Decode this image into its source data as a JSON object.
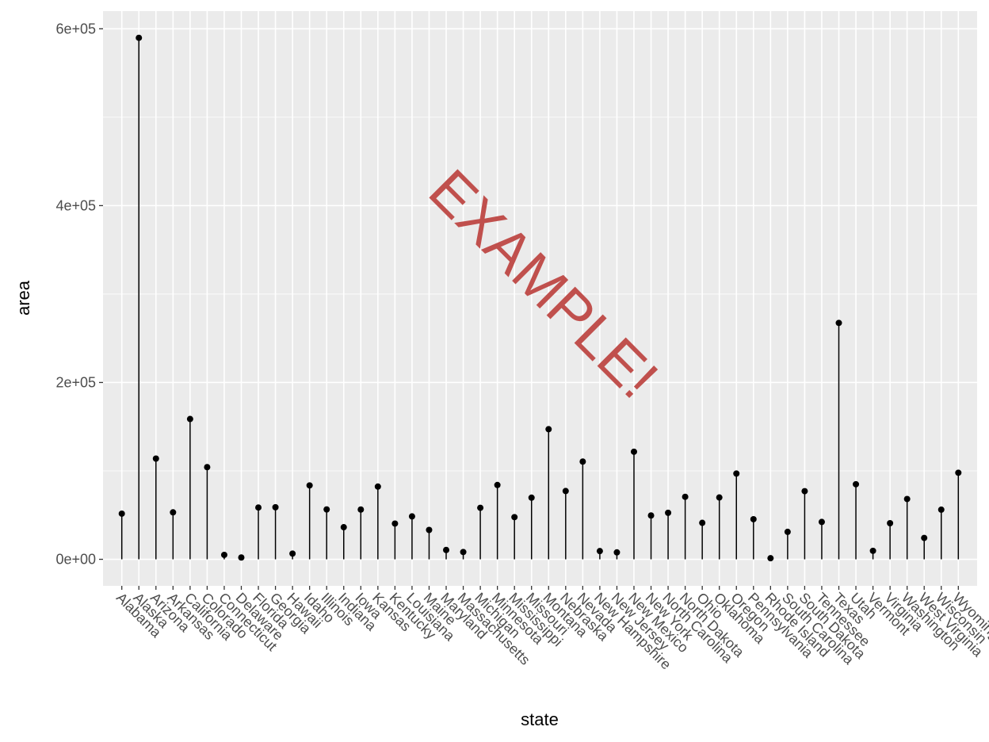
{
  "chart_data": {
    "type": "lollipop",
    "xlabel": "state",
    "ylabel": "area",
    "ylim": [
      -30000,
      620000
    ],
    "yticks": [
      0,
      200000,
      400000,
      600000
    ],
    "ytick_labels": [
      "0e+00",
      "2e+05",
      "4e+05",
      "6e+05"
    ],
    "grid": true,
    "panel_background": "#EBEBEB",
    "grid_color": "#FFFFFF",
    "stem_color": "#000000",
    "point_color": "#000000",
    "categories": [
      "Alabama",
      "Alaska",
      "Arizona",
      "Arkansas",
      "California",
      "Colorado",
      "Connecticut",
      "Delaware",
      "Florida",
      "Georgia",
      "Hawaii",
      "Idaho",
      "Illinois",
      "Indiana",
      "Iowa",
      "Kansas",
      "Kentucky",
      "Louisiana",
      "Maine",
      "Maryland",
      "Massachusetts",
      "Michigan",
      "Minnesota",
      "Mississippi",
      "Missouri",
      "Montana",
      "Nebraska",
      "Nevada",
      "New Hampshire",
      "New Jersey",
      "New Mexico",
      "New York",
      "North Carolina",
      "North Dakota",
      "Ohio",
      "Oklahoma",
      "Oregon",
      "Pennsylvania",
      "Rhode Island",
      "South Carolina",
      "South Dakota",
      "Tennessee",
      "Texas",
      "Utah",
      "Vermont",
      "Virginia",
      "Washington",
      "West Virginia",
      "Wisconsin",
      "Wyoming"
    ],
    "values": [
      51609,
      589757,
      113909,
      53104,
      158693,
      104247,
      5009,
      2057,
      58560,
      58876,
      6450,
      83557,
      56400,
      36291,
      56290,
      82264,
      40395,
      48523,
      33215,
      10577,
      8257,
      58216,
      84068,
      47716,
      69686,
      147138,
      77227,
      110540,
      9304,
      7836,
      121666,
      49576,
      52586,
      70665,
      41222,
      69919,
      96981,
      45333,
      1214,
      31055,
      77047,
      42244,
      267339,
      84916,
      9609,
      40815,
      68192,
      24181,
      56154,
      97914
    ],
    "watermark": {
      "text": "EXAMPLE!",
      "color": "#C0504D"
    }
  }
}
